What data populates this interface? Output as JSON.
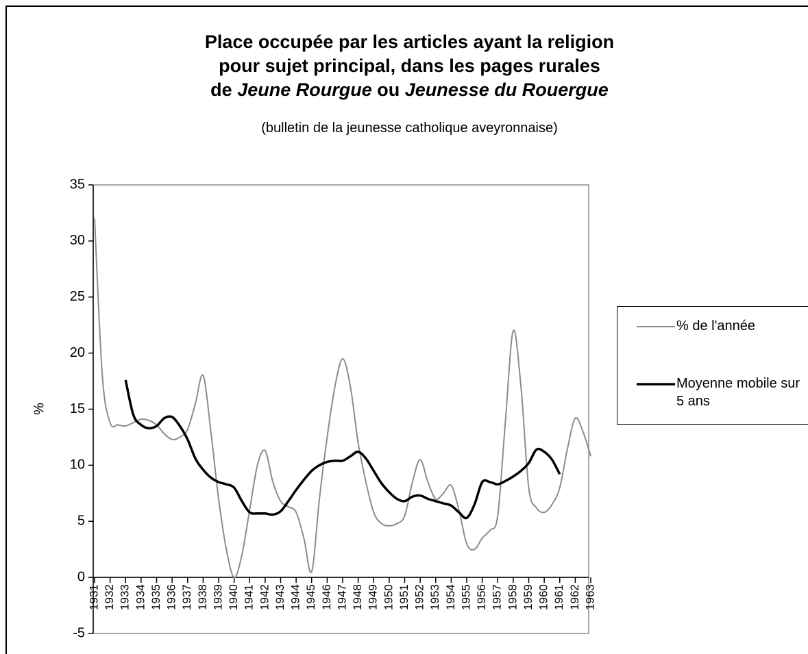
{
  "chart_data": {
    "type": "line",
    "title": [
      [
        {
          "text": "Place occupée par les articles ayant la religion",
          "italic": false
        }
      ],
      [
        {
          "text": "pour sujet principal, dans les pages rurales",
          "italic": false
        }
      ],
      [
        {
          "text": "de ",
          "italic": false
        },
        {
          "text": "Jeune Rourgue",
          "italic": true
        },
        {
          "text": " ou ",
          "italic": false
        },
        {
          "text": "Jeunesse du Rouergue",
          "italic": true
        }
      ]
    ],
    "subtitle": "(bulletin de la jeunesse catholique aveyronnaise)",
    "ylabel": "%",
    "x": [
      1931,
      1931.5,
      1932,
      1932.5,
      1933,
      1933.5,
      1934,
      1934.5,
      1935,
      1935.5,
      1936,
      1936.5,
      1937,
      1937.5,
      1938,
      1938.5,
      1939,
      1939.5,
      1940,
      1940.5,
      1941,
      1941.5,
      1942,
      1942.5,
      1943,
      1943.5,
      1944,
      1944.5,
      1945,
      1945.5,
      1946,
      1946.5,
      1947,
      1947.5,
      1948,
      1948.5,
      1949,
      1949.5,
      1950,
      1950.5,
      1951,
      1951.5,
      1952,
      1952.5,
      1953,
      1953.5,
      1954,
      1954.5,
      1955,
      1955.5,
      1956,
      1956.5,
      1957,
      1957.5,
      1958,
      1958.5,
      1959,
      1959.5,
      1960,
      1960.5,
      1961,
      1961.5,
      1962,
      1962.5,
      1963
    ],
    "series": [
      {
        "name": "% de l'année",
        "color": "#8c8c8c",
        "width": 2,
        "values": [
          32,
          18,
          13.8,
          13.6,
          13.5,
          13.8,
          14.1,
          14.0,
          13.6,
          12.8,
          12.3,
          12.5,
          13.2,
          15.5,
          18.0,
          13.0,
          7.0,
          2.5,
          0,
          2,
          6,
          10,
          11.3,
          8.5,
          6.8,
          6.3,
          5.8,
          3.5,
          0.5,
          7,
          12.5,
          17,
          19.5,
          17,
          12,
          8.5,
          5.8,
          4.8,
          4.6,
          4.8,
          5.5,
          8.5,
          10.5,
          8.5,
          7,
          7.5,
          8.2,
          6,
          3,
          2.5,
          3.5,
          4.2,
          5.5,
          14,
          22,
          17,
          8,
          6.2,
          5.8,
          6.5,
          8,
          11.5,
          14.2,
          13,
          10.8
        ]
      },
      {
        "name": "Moyenne mobile sur 5 ans",
        "color": "#000000",
        "width": 3.5,
        "values": [
          null,
          null,
          null,
          null,
          17.6,
          14.5,
          13.6,
          13.3,
          13.5,
          14.2,
          14.3,
          13.5,
          12.3,
          10.6,
          9.6,
          8.9,
          8.5,
          8.3,
          8.0,
          6.8,
          5.8,
          5.7,
          5.7,
          5.6,
          5.9,
          6.8,
          7.8,
          8.7,
          9.5,
          10.0,
          10.3,
          10.4,
          10.4,
          10.8,
          11.2,
          10.6,
          9.5,
          8.4,
          7.6,
          7.0,
          6.8,
          7.2,
          7.3,
          7.0,
          6.8,
          6.6,
          6.4,
          5.8,
          5.3,
          6.5,
          8.5,
          8.5,
          8.3,
          8.6,
          9.0,
          9.5,
          10.2,
          11.4,
          11.2,
          10.5,
          9.2,
          null,
          null,
          null,
          null
        ]
      }
    ],
    "xlim": [
      1931,
      1963
    ],
    "xticks": [
      1931,
      1932,
      1933,
      1934,
      1935,
      1936,
      1937,
      1938,
      1939,
      1940,
      1941,
      1942,
      1943,
      1944,
      1945,
      1946,
      1947,
      1948,
      1949,
      1950,
      1951,
      1952,
      1953,
      1954,
      1955,
      1956,
      1957,
      1958,
      1959,
      1960,
      1961,
      1962,
      1963
    ],
    "ylim": [
      -5,
      35
    ],
    "yticks": [
      -5,
      0,
      5,
      10,
      15,
      20,
      25,
      30,
      35
    ],
    "legend": "right"
  }
}
